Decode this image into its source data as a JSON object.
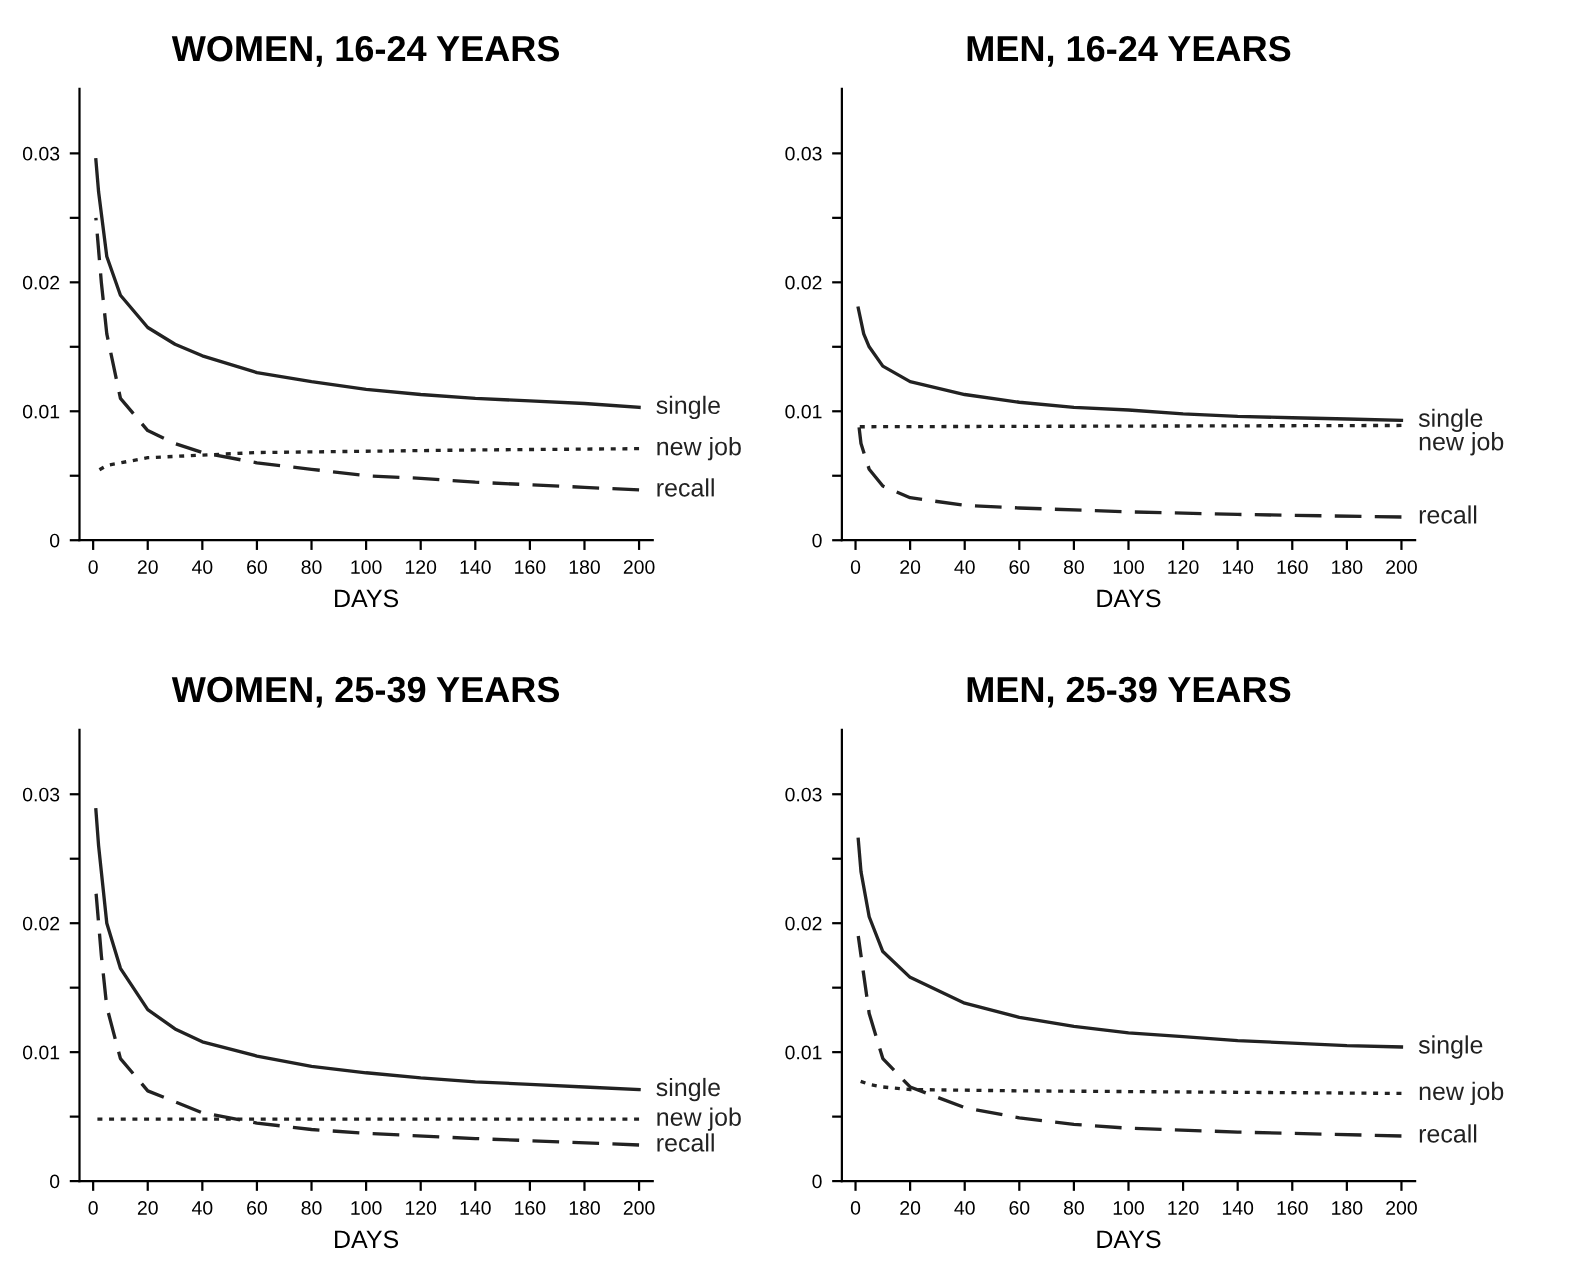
{
  "chart_data": [
    {
      "type": "line",
      "title": "WOMEN, 16-24 YEARS",
      "xlabel": "DAYS",
      "xlim": [
        -5,
        205
      ],
      "xticks": [
        0,
        20,
        40,
        60,
        80,
        100,
        120,
        140,
        160,
        180,
        200
      ],
      "ylim": [
        0,
        0.035
      ],
      "yticks": [
        0,
        {
          "value": 0.005,
          "label": null
        },
        0.01,
        {
          "value": 0.015,
          "label": null
        },
        0.02,
        {
          "value": 0.025,
          "label": null
        },
        0.03
      ],
      "grid": false,
      "legend": false,
      "series": [
        {
          "name": "single",
          "color": "#222222",
          "line_style": "solid",
          "x": [
            1,
            2,
            5,
            10,
            20,
            30,
            40,
            60,
            80,
            100,
            120,
            140,
            160,
            180,
            200
          ],
          "values": [
            0.0295,
            0.027,
            0.022,
            0.019,
            0.0165,
            0.0152,
            0.0143,
            0.013,
            0.0123,
            0.0117,
            0.0113,
            0.011,
            0.0108,
            0.0106,
            0.0103
          ]
        },
        {
          "name": "new job",
          "color": "#222222",
          "line_style": "dotted",
          "x": [
            1,
            5,
            10,
            20,
            40,
            60,
            100,
            140,
            200
          ],
          "values": [
            0.0053,
            0.0058,
            0.006,
            0.0064,
            0.0066,
            0.0068,
            0.0069,
            0.007,
            0.0071
          ]
        },
        {
          "name": "recall",
          "color": "#222222",
          "line_style": "dashed",
          "x": [
            1,
            3,
            5,
            10,
            20,
            30,
            40,
            60,
            80,
            100,
            120,
            140,
            160,
            180,
            200
          ],
          "values": [
            0.025,
            0.02,
            0.016,
            0.011,
            0.0085,
            0.0075,
            0.0068,
            0.006,
            0.0055,
            0.005,
            0.0048,
            0.0045,
            0.0043,
            0.0041,
            0.0039
          ]
        }
      ]
    },
    {
      "type": "line",
      "title": "MEN, 16-24 YEARS",
      "xlabel": "DAYS",
      "xlim": [
        -5,
        205
      ],
      "xticks": [
        0,
        20,
        40,
        60,
        80,
        100,
        120,
        140,
        160,
        180,
        200
      ],
      "ylim": [
        0,
        0.035
      ],
      "yticks": [
        0,
        {
          "value": 0.005,
          "label": null
        },
        0.01,
        {
          "value": 0.015,
          "label": null
        },
        0.02,
        {
          "value": 0.025,
          "label": null
        },
        0.03
      ],
      "grid": false,
      "legend": false,
      "series": [
        {
          "name": "single",
          "color": "#222222",
          "line_style": "solid",
          "x": [
            1,
            3,
            5,
            10,
            20,
            40,
            60,
            80,
            100,
            120,
            140,
            160,
            180,
            200
          ],
          "values": [
            0.018,
            0.016,
            0.015,
            0.0135,
            0.0123,
            0.0113,
            0.0107,
            0.0103,
            0.0101,
            0.0098,
            0.0096,
            0.0095,
            0.0094,
            0.0093
          ]
        },
        {
          "name": "new job",
          "color": "#222222",
          "line_style": "dotted",
          "x": [
            1,
            200
          ],
          "values": [
            0.0088,
            0.0089
          ]
        },
        {
          "name": "recall",
          "color": "#222222",
          "line_style": "dashed",
          "x": [
            1,
            2,
            5,
            10,
            20,
            40,
            60,
            100,
            140,
            200
          ],
          "values": [
            0.0093,
            0.0075,
            0.0055,
            0.0042,
            0.0033,
            0.0027,
            0.0025,
            0.0022,
            0.002,
            0.0018
          ]
        }
      ]
    },
    {
      "type": "line",
      "title": "WOMEN, 25-39 YEARS",
      "xlabel": "DAYS",
      "xlim": [
        -5,
        205
      ],
      "xticks": [
        0,
        20,
        40,
        60,
        80,
        100,
        120,
        140,
        160,
        180,
        200
      ],
      "ylim": [
        0,
        0.035
      ],
      "yticks": [
        0,
        {
          "value": 0.005,
          "label": null
        },
        0.01,
        {
          "value": 0.015,
          "label": null
        },
        0.02,
        {
          "value": 0.025,
          "label": null
        },
        0.03
      ],
      "grid": false,
      "legend": false,
      "series": [
        {
          "name": "single",
          "color": "#222222",
          "line_style": "solid",
          "x": [
            1,
            2,
            5,
            10,
            20,
            30,
            40,
            60,
            80,
            100,
            120,
            140,
            160,
            180,
            200
          ],
          "values": [
            0.0288,
            0.026,
            0.02,
            0.0165,
            0.0133,
            0.0118,
            0.0108,
            0.0097,
            0.0089,
            0.0084,
            0.008,
            0.0077,
            0.0075,
            0.0073,
            0.0071
          ]
        },
        {
          "name": "new job",
          "color": "#222222",
          "line_style": "dotted",
          "x": [
            1,
            200
          ],
          "values": [
            0.0048,
            0.0048
          ]
        },
        {
          "name": "recall",
          "color": "#222222",
          "line_style": "dashed",
          "x": [
            1,
            3,
            5,
            10,
            20,
            40,
            60,
            80,
            100,
            140,
            200
          ],
          "values": [
            0.0225,
            0.0175,
            0.0135,
            0.0095,
            0.007,
            0.0053,
            0.0045,
            0.004,
            0.0037,
            0.0033,
            0.0028
          ]
        }
      ]
    },
    {
      "type": "line",
      "title": "MEN, 25-39 YEARS",
      "xlabel": "DAYS",
      "xlim": [
        -5,
        205
      ],
      "xticks": [
        0,
        20,
        40,
        60,
        80,
        100,
        120,
        140,
        160,
        180,
        200
      ],
      "ylim": [
        0,
        0.035
      ],
      "yticks": [
        0,
        {
          "value": 0.005,
          "label": null
        },
        0.01,
        {
          "value": 0.015,
          "label": null
        },
        0.02,
        {
          "value": 0.025,
          "label": null
        },
        0.03
      ],
      "grid": false,
      "legend": false,
      "series": [
        {
          "name": "single",
          "color": "#222222",
          "line_style": "solid",
          "x": [
            1,
            2,
            5,
            10,
            20,
            40,
            60,
            80,
            100,
            120,
            140,
            160,
            180,
            200
          ],
          "values": [
            0.0265,
            0.024,
            0.0205,
            0.0178,
            0.0158,
            0.0138,
            0.0127,
            0.012,
            0.0115,
            0.0112,
            0.0109,
            0.0107,
            0.0105,
            0.0104
          ]
        },
        {
          "name": "new job",
          "color": "#222222",
          "line_style": "dotted",
          "x": [
            1,
            5,
            10,
            20,
            60,
            200
          ],
          "values": [
            0.0078,
            0.0075,
            0.0073,
            0.0071,
            0.007,
            0.0068
          ]
        },
        {
          "name": "recall",
          "color": "#222222",
          "line_style": "dashed",
          "x": [
            1,
            3,
            5,
            10,
            20,
            40,
            60,
            80,
            100,
            140,
            200
          ],
          "values": [
            0.019,
            0.016,
            0.013,
            0.0095,
            0.0073,
            0.0057,
            0.0049,
            0.0044,
            0.0041,
            0.0038,
            0.0035
          ]
        }
      ]
    }
  ]
}
